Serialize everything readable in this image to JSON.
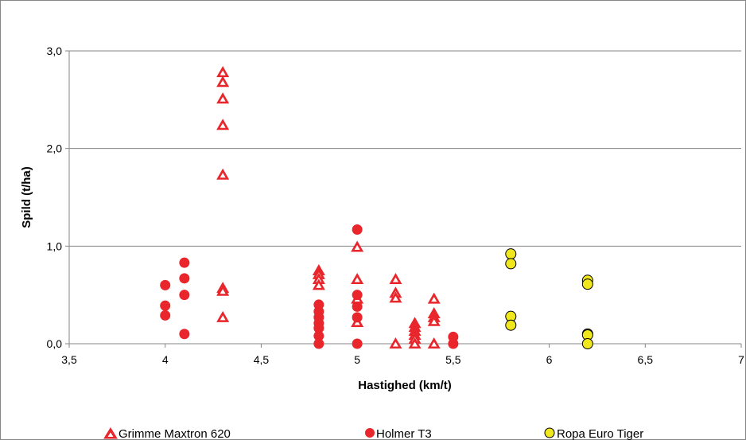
{
  "chart_data": {
    "type": "scatter",
    "xlabel": "Hastighed (km/t)",
    "ylabel": "Spild (t/ha)",
    "xlim": [
      3.5,
      7
    ],
    "ylim": [
      0,
      3
    ],
    "x_ticks": [
      "3,5",
      "4",
      "4,5",
      "5",
      "5,5",
      "6",
      "6,5",
      "7"
    ],
    "y_ticks": [
      "0,0",
      "1,0",
      "2,0",
      "3,0"
    ],
    "grid": "horizontal",
    "legend_position": "bottom",
    "series": [
      {
        "name": "Grimme Maxtron 620",
        "marker": "triangle-open",
        "color": "#e8262b",
        "points": [
          [
            4.3,
            2.78
          ],
          [
            4.3,
            2.68
          ],
          [
            4.3,
            2.51
          ],
          [
            4.3,
            2.24
          ],
          [
            4.3,
            1.73
          ],
          [
            4.3,
            0.57
          ],
          [
            4.3,
            0.54
          ],
          [
            4.3,
            0.27
          ],
          [
            4.8,
            0.75
          ],
          [
            4.8,
            0.71
          ],
          [
            4.8,
            0.66
          ],
          [
            4.8,
            0.6
          ],
          [
            5.0,
            0.99
          ],
          [
            5.0,
            0.66
          ],
          [
            5.0,
            0.46
          ],
          [
            5.0,
            0.22
          ],
          [
            5.2,
            0.66
          ],
          [
            5.2,
            0.52
          ],
          [
            5.2,
            0.47
          ],
          [
            5.2,
            0.0
          ],
          [
            5.3,
            0.21
          ],
          [
            5.3,
            0.17
          ],
          [
            5.3,
            0.13
          ],
          [
            5.3,
            0.09
          ],
          [
            5.3,
            0.05
          ],
          [
            5.3,
            0.0
          ],
          [
            5.4,
            0.46
          ],
          [
            5.4,
            0.31
          ],
          [
            5.4,
            0.27
          ],
          [
            5.4,
            0.23
          ],
          [
            5.4,
            0.0
          ]
        ]
      },
      {
        "name": "Holmer T3",
        "marker": "circle",
        "color": "#e8262b",
        "points": [
          [
            4.0,
            0.6
          ],
          [
            4.0,
            0.39
          ],
          [
            4.0,
            0.29
          ],
          [
            4.1,
            0.83
          ],
          [
            4.1,
            0.67
          ],
          [
            4.1,
            0.5
          ],
          [
            4.1,
            0.1
          ],
          [
            4.8,
            0.4
          ],
          [
            4.8,
            0.33
          ],
          [
            4.8,
            0.27
          ],
          [
            4.8,
            0.21
          ],
          [
            4.8,
            0.16
          ],
          [
            4.8,
            0.08
          ],
          [
            4.8,
            0.0
          ],
          [
            5.0,
            1.17
          ],
          [
            5.0,
            0.5
          ],
          [
            5.0,
            0.38
          ],
          [
            5.0,
            0.27
          ],
          [
            5.0,
            0.0
          ],
          [
            5.5,
            0.07
          ],
          [
            5.5,
            0.0
          ]
        ]
      },
      {
        "name": "Ropa Euro Tiger",
        "marker": "circle",
        "color": "#f0e81c",
        "points": [
          [
            5.8,
            0.92
          ],
          [
            5.8,
            0.82
          ],
          [
            5.8,
            0.28
          ],
          [
            5.8,
            0.19
          ],
          [
            6.2,
            0.65
          ],
          [
            6.2,
            0.61
          ],
          [
            6.2,
            0.1
          ],
          [
            6.2,
            0.09
          ],
          [
            6.2,
            0.0
          ]
        ]
      }
    ]
  }
}
